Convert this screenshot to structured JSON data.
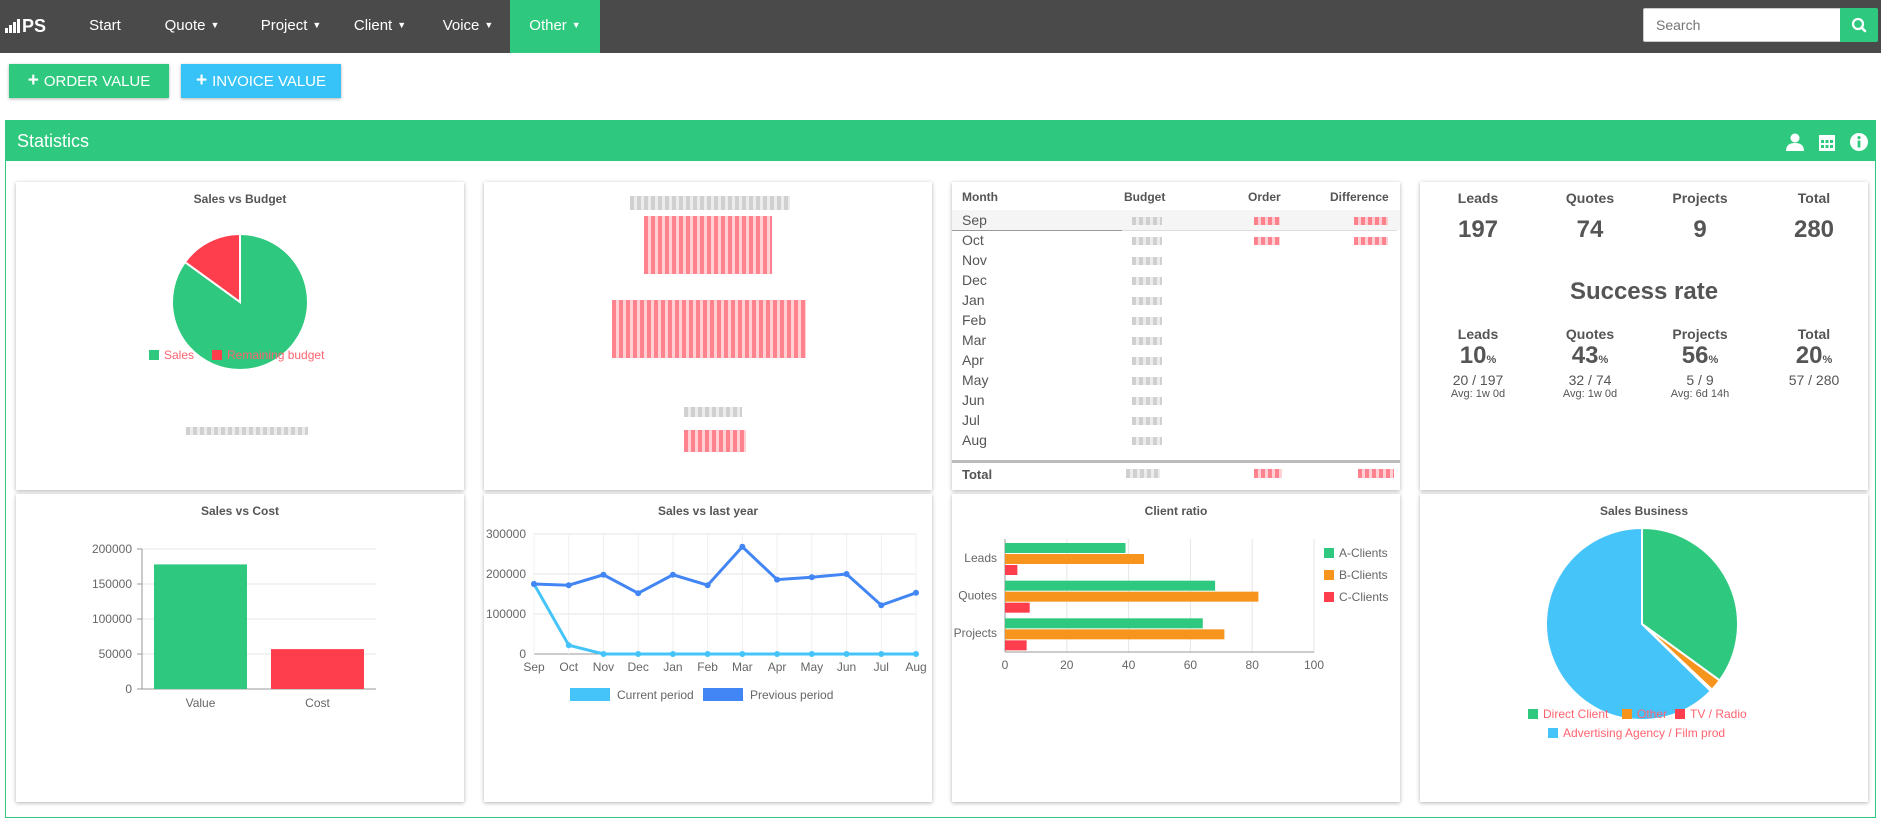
{
  "navbar": {
    "brand": "PS",
    "items": [
      {
        "label": "Start",
        "dropdown": false
      },
      {
        "label": "Quote",
        "dropdown": true
      },
      {
        "label": "Project",
        "dropdown": true
      },
      {
        "label": "Client",
        "dropdown": true
      },
      {
        "label": "Voice",
        "dropdown": true
      },
      {
        "label": "Other",
        "dropdown": true,
        "active": true
      }
    ],
    "search_placeholder": "Search",
    "accent": "#2ec97f",
    "bg": "#4a4a4a"
  },
  "actions": {
    "order_value": "ORDER VALUE",
    "invoice_value": "INVOICE VALUE"
  },
  "panel": {
    "title": "Statistics",
    "icons": [
      "user-icon",
      "calendar-icon",
      "info-icon"
    ]
  },
  "sales_vs_budget": {
    "title": "Sales vs Budget",
    "legend": [
      "Sales",
      "Remaining budget"
    ]
  },
  "budget_table": {
    "headers": [
      "Month",
      "Budget",
      "Order",
      "Difference"
    ],
    "months": [
      "Sep",
      "Oct",
      "Nov",
      "Dec",
      "Jan",
      "Feb",
      "Mar",
      "Apr",
      "May",
      "Jun",
      "Jul",
      "Aug"
    ],
    "total_label": "Total"
  },
  "stats": {
    "headers": [
      "Leads",
      "Quotes",
      "Projects",
      "Total"
    ],
    "counts": [
      "197",
      "74",
      "9",
      "280"
    ],
    "success_title": "Success rate",
    "rate_headers": [
      "Leads",
      "Quotes",
      "Projects",
      "Total"
    ],
    "rates": [
      "10",
      "43",
      "56",
      "20"
    ],
    "pct_sign": "%",
    "ratios": [
      "20 / 197",
      "32 / 74",
      "5 / 9",
      "57 / 280"
    ],
    "avgs": [
      "Avg: 1w 0d",
      "Avg: 1w 0d",
      "Avg: 6d 14h",
      ""
    ]
  },
  "chart_data": [
    {
      "type": "pie",
      "title": "Sales vs Budget",
      "labels": [
        "Sales",
        "Remaining budget"
      ],
      "values": [
        85,
        15
      ],
      "colors": [
        "#2ec97f",
        "#ff3e4d"
      ]
    },
    {
      "type": "bar",
      "title": "Sales vs Cost",
      "categories": [
        "Value",
        "Cost"
      ],
      "values": [
        178000,
        57000
      ],
      "colors": [
        "#2ec97f",
        "#ff3e4d"
      ],
      "ylim": [
        0,
        200000
      ],
      "yticks": [
        "0",
        "50000",
        "100000",
        "150000",
        "200000"
      ]
    },
    {
      "type": "line",
      "title": "Sales vs last year",
      "categories": [
        "Sep",
        "Oct",
        "Nov",
        "Dec",
        "Jan",
        "Feb",
        "Mar",
        "Apr",
        "May",
        "Jun",
        "Jul",
        "Aug"
      ],
      "series": [
        {
          "name": "Current period",
          "color": "#45c4f9",
          "values": [
            175000,
            22000,
            0,
            0,
            0,
            0,
            0,
            0,
            0,
            0,
            0,
            0
          ]
        },
        {
          "name": "Previous period",
          "color": "#4285f4",
          "values": [
            175000,
            172000,
            198000,
            152000,
            198000,
            172000,
            268000,
            186000,
            192000,
            200000,
            122000,
            153000
          ]
        }
      ],
      "ylim": [
        0,
        300000
      ],
      "yticks": [
        "0",
        "100000",
        "200000",
        "300000"
      ]
    },
    {
      "type": "bar",
      "title": "Client ratio",
      "orientation": "horizontal",
      "categories": [
        "Leads",
        "Quotes",
        "Projects"
      ],
      "series": [
        {
          "name": "A-Clients",
          "color": "#2ec97f",
          "values": [
            39,
            68,
            64
          ]
        },
        {
          "name": "B-Clients",
          "color": "#f7941d",
          "values": [
            45,
            82,
            71
          ]
        },
        {
          "name": "C-Clients",
          "color": "#ff3e4d",
          "values": [
            4,
            8,
            7
          ]
        }
      ],
      "xlim": [
        0,
        100
      ],
      "xticks": [
        "0",
        "20",
        "40",
        "60",
        "80",
        "100"
      ]
    },
    {
      "type": "pie",
      "title": "Sales Business",
      "labels": [
        "Direct Client",
        "Other",
        "TV / Radio",
        "Advertising Agency / Film prod"
      ],
      "values": [
        35,
        2,
        0.3,
        62.7
      ],
      "colors": [
        "#2ec97f",
        "#f7941d",
        "#ff3e4d",
        "#45c4f9"
      ]
    }
  ]
}
